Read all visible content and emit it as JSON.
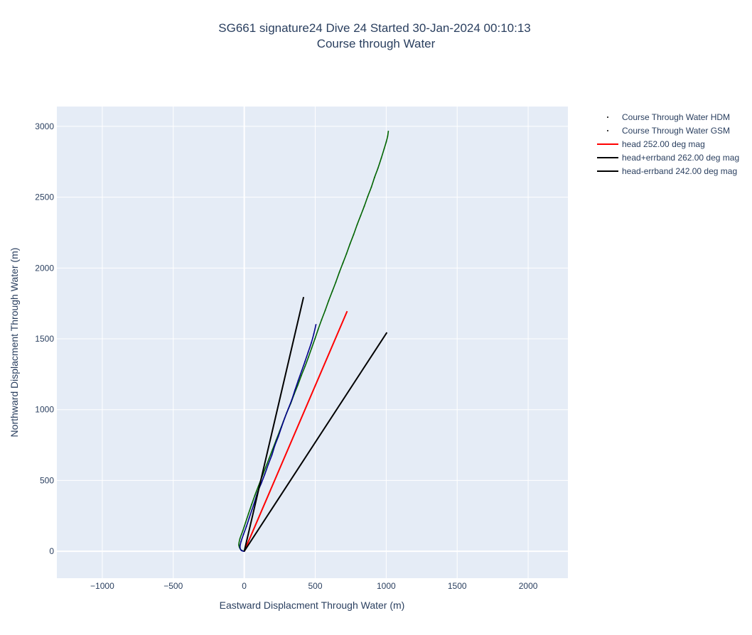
{
  "chart_data": {
    "type": "line",
    "title_line1": "SG661 signature24 Dive 24 Started 30-Jan-2024 00:10:13",
    "title_line2": "Course through Water",
    "xlabel": "Eastward Displacment Through Water (m)",
    "ylabel": "Northward Displacment Through Water (m)",
    "xlim": [
      -1320,
      2280
    ],
    "ylim": [
      -190,
      3140
    ],
    "x_ticks": [
      -1000,
      -500,
      0,
      500,
      1000,
      1500,
      2000
    ],
    "x_tick_labels": [
      "−1000",
      "−500",
      "0",
      "500",
      "1000",
      "1500",
      "2000"
    ],
    "y_ticks": [
      0,
      500,
      1000,
      1500,
      2000,
      2500,
      3000
    ],
    "y_tick_labels": [
      "0",
      "500",
      "1000",
      "1500",
      "2000",
      "2500",
      "3000"
    ],
    "legend_placement": "top-right",
    "background": "#e5ecf6",
    "grid": true,
    "series": [
      {
        "name": "Course Through Water HDM",
        "mode": "markers-dense",
        "color": "#00008b",
        "x": [
          0,
          -20,
          -30,
          -22,
          -5,
          15,
          35,
          55,
          75,
          95,
          120,
          145,
          170,
          195,
          215,
          240,
          262,
          285,
          310,
          335,
          358,
          380,
          405,
          428,
          450,
          472,
          490,
          505
        ],
        "y": [
          0,
          5,
          30,
          70,
          120,
          175,
          235,
          295,
          355,
          420,
          480,
          545,
          615,
          680,
          745,
          810,
          875,
          940,
          1005,
          1070,
          1140,
          1205,
          1275,
          1340,
          1405,
          1470,
          1535,
          1600
        ]
      },
      {
        "name": "Course Through Water GSM",
        "mode": "markers-dense",
        "color": "#006400",
        "x": [
          0,
          -25,
          -38,
          -30,
          -10,
          10,
          30,
          52,
          75,
          100,
          125,
          150,
          175,
          200,
          225,
          250,
          275,
          300,
          328,
          352,
          378,
          402,
          428,
          452,
          475,
          498,
          520,
          545,
          570,
          595,
          620,
          645,
          670,
          695,
          720,
          745,
          770,
          795,
          820,
          845,
          870,
          895,
          918,
          942,
          965,
          985,
          1000,
          1010,
          1015
        ],
        "y": [
          0,
          12,
          45,
          90,
          145,
          205,
          265,
          330,
          395,
          460,
          525,
          590,
          655,
          720,
          785,
          850,
          915,
          980,
          1045,
          1110,
          1175,
          1240,
          1305,
          1370,
          1435,
          1500,
          1565,
          1635,
          1700,
          1770,
          1835,
          1900,
          1970,
          2035,
          2100,
          2170,
          2235,
          2305,
          2370,
          2435,
          2505,
          2570,
          2640,
          2705,
          2775,
          2840,
          2890,
          2930,
          2965
        ]
      },
      {
        "name": "head 252.00 deg mag",
        "mode": "lines",
        "color": "#ff0000",
        "x": [
          0,
          725
        ],
        "y": [
          0,
          1695
        ]
      },
      {
        "name": "head+errband 262.00 deg mag",
        "mode": "lines",
        "color": "#000000",
        "x": [
          0,
          418
        ],
        "y": [
          0,
          1795
        ]
      },
      {
        "name": "head-errband 242.00 deg mag",
        "mode": "lines",
        "color": "#000000",
        "x": [
          0,
          1005
        ],
        "y": [
          0,
          1545
        ]
      }
    ]
  }
}
